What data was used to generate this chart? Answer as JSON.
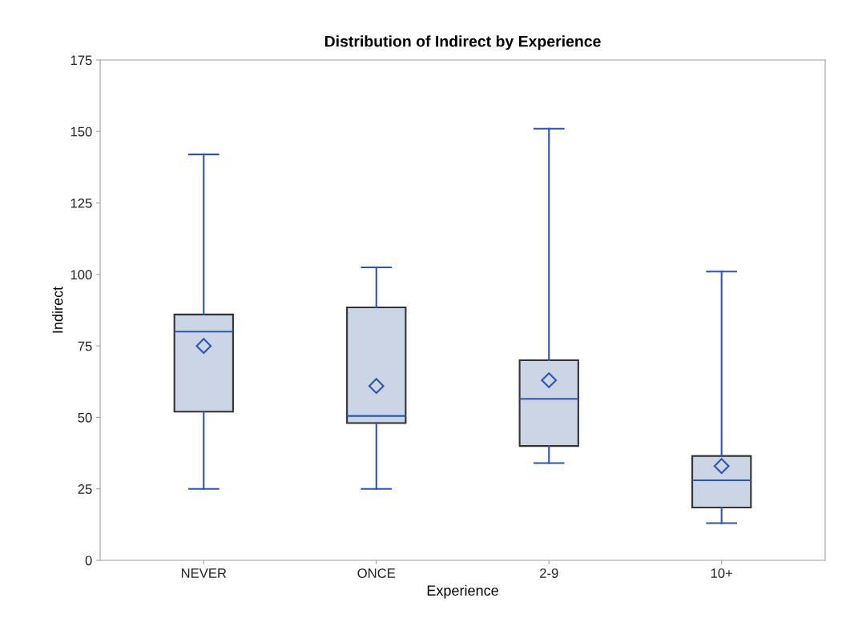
{
  "chart_data": {
    "type": "box",
    "title": "Distribution of Indirect by Experience",
    "xlabel": "Experience",
    "ylabel": "Indirect",
    "categories": [
      "NEVER",
      "ONCE",
      "2-9",
      "10+"
    ],
    "series": [
      {
        "color": "#cbd5e5",
        "boxes": [
          {
            "low": 25,
            "q1": 52,
            "median": 80,
            "q3": 86,
            "high": 142,
            "mean": 75
          },
          {
            "low": 25,
            "q1": 48,
            "median": 50.5,
            "q3": 88.5,
            "high": 102.5,
            "mean": 61
          },
          {
            "low": 34,
            "q1": 40,
            "median": 56.5,
            "q3": 70,
            "high": 151,
            "mean": 63
          },
          {
            "low": 13,
            "q1": 18.5,
            "median": 28,
            "q3": 36.5,
            "high": 101,
            "mean": 33
          }
        ]
      }
    ],
    "marker": "diamond",
    "ylim": [
      0,
      175
    ],
    "yticks": [
      0,
      25,
      50,
      75,
      100,
      125,
      150,
      175
    ],
    "grid": false,
    "legend": false
  }
}
